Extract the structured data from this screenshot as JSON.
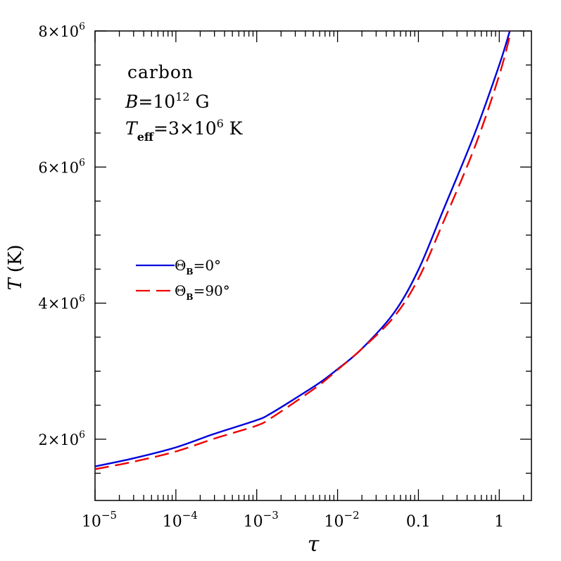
{
  "chart_data": {
    "type": "line",
    "xscale": "log",
    "xlim": [
      1e-05,
      2.5
    ],
    "ylim": [
      1100000,
      8000000
    ],
    "x_ticks": [
      {
        "value": 1e-05,
        "base": "10",
        "exp": "−5"
      },
      {
        "value": 0.0001,
        "base": "10",
        "exp": "−4"
      },
      {
        "value": 0.001,
        "base": "10",
        "exp": "−3"
      },
      {
        "value": 0.01,
        "base": "10",
        "exp": "−2"
      },
      {
        "value": 0.1,
        "base": "0.1",
        "exp": ""
      },
      {
        "value": 1,
        "base": "1",
        "exp": ""
      }
    ],
    "y_ticks": [
      {
        "value": 2000000,
        "mant": "2×10",
        "exp": "6"
      },
      {
        "value": 4000000,
        "mant": "4×10",
        "exp": "6"
      },
      {
        "value": 6000000,
        "mant": "6×10",
        "exp": "6"
      },
      {
        "value": 8000000,
        "mant": "8×10",
        "exp": "6"
      }
    ],
    "xlabel": "τ",
    "ylabel": {
      "var": "T",
      "unit": "(K)"
    },
    "annotation": {
      "line1": "carbon",
      "line2_var": "B",
      "line2_eq": "=10",
      "line2_exp": "12",
      "line2_unit": " G",
      "line3_var": "T",
      "line3_sub": "eff",
      "line3_eq": "=3×10",
      "line3_exp": "6",
      "line3_unit": " K"
    },
    "legend_position": "middle-left",
    "series": [
      {
        "legend_sym": "Θ",
        "legend_sub": "B",
        "legend_val": "=0°",
        "color": "#0000dd",
        "dash": "solid",
        "x": [
          1e-05,
          3e-05,
          0.0001,
          0.0003,
          0.001,
          0.0015,
          0.003,
          0.006,
          0.01,
          0.02,
          0.05,
          0.1,
          0.2,
          0.5,
          1.0,
          1.35
        ],
        "y": [
          1600000,
          1720000,
          1880000,
          2080000,
          2280000,
          2380000,
          2600000,
          2830000,
          3030000,
          3330000,
          3860000,
          4490000,
          5350000,
          6500000,
          7500000,
          8000000
        ]
      },
      {
        "legend_sym": "Θ",
        "legend_sub": "B",
        "legend_val": "=90°",
        "color": "#ee0000",
        "dash": "dashed",
        "x": [
          1e-05,
          3e-05,
          0.0001,
          0.0003,
          0.001,
          0.0015,
          0.003,
          0.006,
          0.01,
          0.02,
          0.05,
          0.1,
          0.2,
          0.5,
          1.0,
          1.4
        ],
        "y": [
          1560000,
          1670000,
          1820000,
          2010000,
          2200000,
          2310000,
          2550000,
          2800000,
          3020000,
          3330000,
          3800000,
          4360000,
          5170000,
          6300000,
          7350000,
          8000000
        ]
      }
    ]
  }
}
